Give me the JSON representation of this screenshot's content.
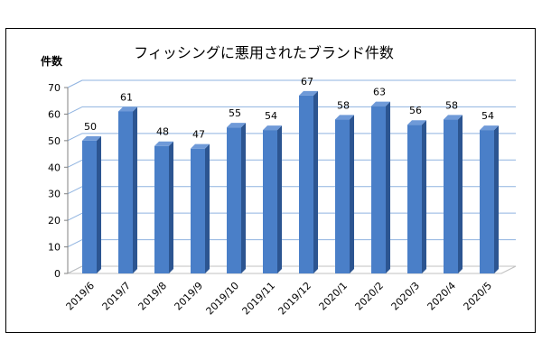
{
  "chart_data": {
    "type": "bar",
    "title": "フィッシングに悪用されたブランド件数",
    "ylabel": "件数",
    "xlabel": "",
    "categories": [
      "2019/6",
      "2019/7",
      "2019/8",
      "2019/9",
      "2019/10",
      "2019/11",
      "2019/12",
      "2020/1",
      "2020/2",
      "2020/3",
      "2020/4",
      "2020/5"
    ],
    "values": [
      50,
      61,
      48,
      47,
      55,
      54,
      67,
      58,
      63,
      56,
      58,
      54
    ],
    "ylim": [
      0,
      70
    ],
    "yticks": [
      0,
      10,
      20,
      30,
      40,
      50,
      60,
      70
    ],
    "grid": true,
    "style": "3d",
    "colors": {
      "bar_front": "#4a7fc8",
      "bar_top": "#6f9ad8",
      "bar_side": "#2c5591",
      "grid": "#8fb3e0",
      "floor": "#c0c0c0"
    }
  }
}
